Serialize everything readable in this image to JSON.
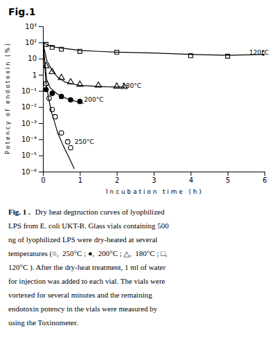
{
  "chart_data": {
    "type": "scatter",
    "title": "Fig.1",
    "xlabel": "I n c u b a t i o n   t i m e   ( h )",
    "ylabel": "P o t e n c y   o f   e n d o t o x i n   ( % )",
    "log": "y",
    "grid": false,
    "xlim": [
      0,
      6
    ],
    "xticks": [
      0,
      1,
      2,
      3,
      4,
      5,
      6
    ],
    "ylim": [
      1e-06,
      1000
    ],
    "yticks": [
      {
        "value": 1e-06,
        "label": "10⁻⁶"
      },
      {
        "value": 1e-05,
        "label": "10⁻⁵"
      },
      {
        "value": 0.0001,
        "label": "10⁻⁴"
      },
      {
        "value": 0.001,
        "label": "10⁻³"
      },
      {
        "value": 0.01,
        "label": "10⁻²"
      },
      {
        "value": 0.1,
        "label": "10⁻¹"
      },
      1,
      10,
      {
        "value": 100,
        "label": "10²"
      },
      {
        "value": 1000,
        "label": "10³"
      }
    ],
    "series": [
      {
        "type": "scatter",
        "marker": "square-open",
        "color": "black",
        "x": [
          0.083,
          0.25,
          0.5,
          1.0,
          2.0,
          4.0,
          5.0,
          6.0
        ],
        "values": [
          75,
          50,
          38,
          28,
          25,
          15,
          14,
          22
        ]
      },
      {
        "type": "line",
        "line_style": "solid",
        "color": "black",
        "x": [
          0,
          0.15,
          0.35,
          0.6,
          1.0,
          1.5,
          2.0,
          3.0,
          4.0,
          5.0,
          6.0
        ],
        "values": [
          100,
          65,
          50,
          42,
          32,
          28,
          25,
          22,
          18,
          16,
          18
        ]
      },
      {
        "type": "scatter",
        "marker": "triangle-open",
        "color": "black",
        "x": [
          0.083,
          0.25,
          0.5,
          0.75,
          1.0,
          1.5,
          2.0,
          2.2
        ],
        "values": [
          3.5,
          1.5,
          0.65,
          0.35,
          0.25,
          0.22,
          0.19,
          0.18
        ]
      },
      {
        "type": "line",
        "line_style": "solid",
        "color": "black",
        "x": [
          0,
          0.1,
          0.25,
          0.4,
          0.6,
          0.8,
          1.0,
          1.3,
          1.7,
          2.2
        ],
        "values": [
          100,
          8,
          1.8,
          0.7,
          0.35,
          0.27,
          0.22,
          0.2,
          0.18,
          0.17
        ]
      },
      {
        "type": "scatter",
        "marker": "circle",
        "color": "black",
        "x": [
          0.083,
          0.25,
          0.5,
          0.75,
          1.0
        ],
        "values": [
          0.12,
          0.07,
          0.045,
          0.028,
          0.022
        ]
      },
      {
        "type": "line",
        "line_style": "solid",
        "color": "black",
        "x": [
          0,
          0.1,
          0.2,
          0.35,
          0.5,
          0.7,
          0.9,
          1.1
        ],
        "values": [
          100,
          0.5,
          0.15,
          0.075,
          0.045,
          0.03,
          0.022,
          0.017
        ]
      },
      {
        "type": "scatter",
        "marker": "circle-open",
        "color": "black",
        "x": [
          0.083,
          0.167,
          0.25,
          0.33,
          0.5,
          0.67,
          0.75
        ],
        "values": [
          0.28,
          0.035,
          0.007,
          0.0025,
          0.00025,
          7e-05,
          3e-05
        ]
      },
      {
        "type": "line",
        "line_style": "solid",
        "color": "black",
        "x": [
          0,
          0.083,
          0.15,
          0.22,
          0.3,
          0.4,
          0.55,
          0.7,
          0.85
        ],
        "values": [
          100,
          0.3,
          0.04,
          0.006,
          0.0015,
          0.00025,
          4e-05,
          8e-06,
          1.5e-06
        ]
      }
    ],
    "annotations": [
      {
        "text": "120°C",
        "x": 5.55,
        "y": 22
      },
      {
        "text": "180°C",
        "x": 2.1,
        "y": 0.19
      },
      {
        "text": "200°C",
        "x": 1.08,
        "y": 0.028
      },
      {
        "text": "250°C",
        "x": 0.82,
        "y": 6.5e-05
      }
    ],
    "caption_bold": "Fig. 1 .",
    "caption": [
      "Dry heat degtruction curves of lyophilized",
      "LPS from E. coli UKT-B. Glass vials containing 500",
      "ng of lyophilized LPS were dry-heated at several",
      "temperatures (○,  250°C ; ●,  200°C ; △,  180°C ; □,",
      "120°C ). After the dry-heat treatment, 1 ml of water",
      "for injection was added to each vial. The vials were",
      "vortexed for several minutes and the remaining",
      "endotoxin potency in the vials were measured by",
      "using the Toxinometer."
    ]
  }
}
